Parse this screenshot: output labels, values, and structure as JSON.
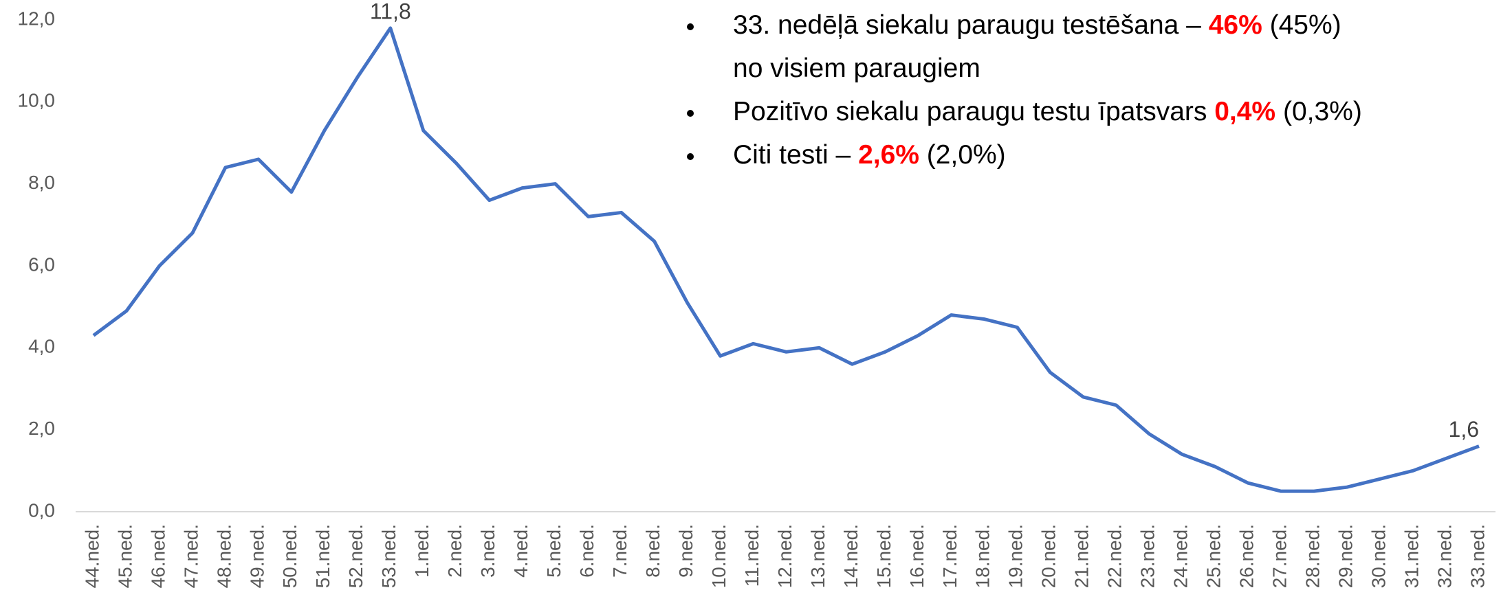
{
  "chart_data": {
    "type": "line",
    "categories": [
      "44.ned.",
      "45.ned.",
      "46.ned.",
      "47.ned.",
      "48.ned.",
      "49.ned.",
      "50.ned.",
      "51.ned.",
      "52.ned.",
      "53.ned.",
      "1.ned.",
      "2.ned.",
      "3.ned.",
      "4.ned.",
      "5.ned.",
      "6.ned.",
      "7.ned.",
      "8.ned.",
      "9.ned.",
      "10.ned.",
      "11.ned.",
      "12.ned.",
      "13.ned.",
      "14.ned.",
      "15.ned.",
      "16.ned.",
      "17.ned.",
      "18.ned.",
      "19.ned.",
      "20.ned.",
      "21.ned.",
      "22.ned.",
      "23.ned.",
      "24.ned.",
      "25.ned.",
      "26.ned.",
      "27.ned.",
      "28.ned.",
      "29.ned.",
      "30.ned.",
      "31.ned.",
      "32.ned.",
      "33.ned."
    ],
    "series": [
      {
        "color": "#4472c4",
        "values": [
          4.3,
          4.9,
          6.0,
          6.8,
          8.4,
          8.6,
          7.8,
          9.3,
          10.6,
          11.8,
          9.3,
          8.5,
          7.6,
          7.9,
          8.0,
          7.2,
          7.3,
          6.6,
          5.1,
          3.8,
          4.1,
          3.9,
          4.0,
          3.6,
          3.9,
          4.3,
          4.8,
          4.7,
          4.5,
          3.4,
          2.8,
          2.6,
          1.9,
          1.4,
          1.1,
          0.7,
          0.5,
          0.5,
          0.6,
          0.8,
          1.0,
          1.3,
          1.6
        ],
        "value_labels": [
          null,
          null,
          null,
          null,
          null,
          null,
          null,
          null,
          null,
          "11,8",
          null,
          null,
          null,
          null,
          null,
          null,
          null,
          null,
          null,
          null,
          null,
          null,
          null,
          null,
          null,
          null,
          null,
          null,
          null,
          null,
          null,
          null,
          null,
          null,
          null,
          null,
          null,
          null,
          null,
          null,
          null,
          null,
          "1,6"
        ]
      }
    ],
    "ylim": [
      0,
      12
    ],
    "yticks": [
      {
        "value": 0,
        "label": "0,0"
      },
      {
        "value": 2,
        "label": "2,0"
      },
      {
        "value": 4,
        "label": "4,0"
      },
      {
        "value": 6,
        "label": "6,0"
      },
      {
        "value": 8,
        "label": "8,0"
      },
      {
        "value": 10,
        "label": "10,0"
      },
      {
        "value": 12,
        "label": "12,0"
      }
    ],
    "grid": false,
    "annotations": [
      {
        "lines": [
          [
            {
              "text": "33. nedēļā siekalu paraugu testēšana – "
            },
            {
              "text": "46%",
              "color": "#ff0000"
            },
            {
              "text": " (45%)"
            }
          ],
          [
            {
              "text": "no visiem paraugiem"
            }
          ]
        ]
      },
      {
        "lines": [
          [
            {
              "text": "Pozitīvo siekalu paraugu testu īpatsvars "
            },
            {
              "text": "0,4%",
              "color": "#ff0000"
            },
            {
              "text": " (0,3%)"
            }
          ]
        ]
      },
      {
        "lines": [
          [
            {
              "text": "Citi testi – "
            },
            {
              "text": "2,6%",
              "color": "#ff0000"
            },
            {
              "text": " (2,0%)"
            }
          ]
        ]
      }
    ]
  }
}
